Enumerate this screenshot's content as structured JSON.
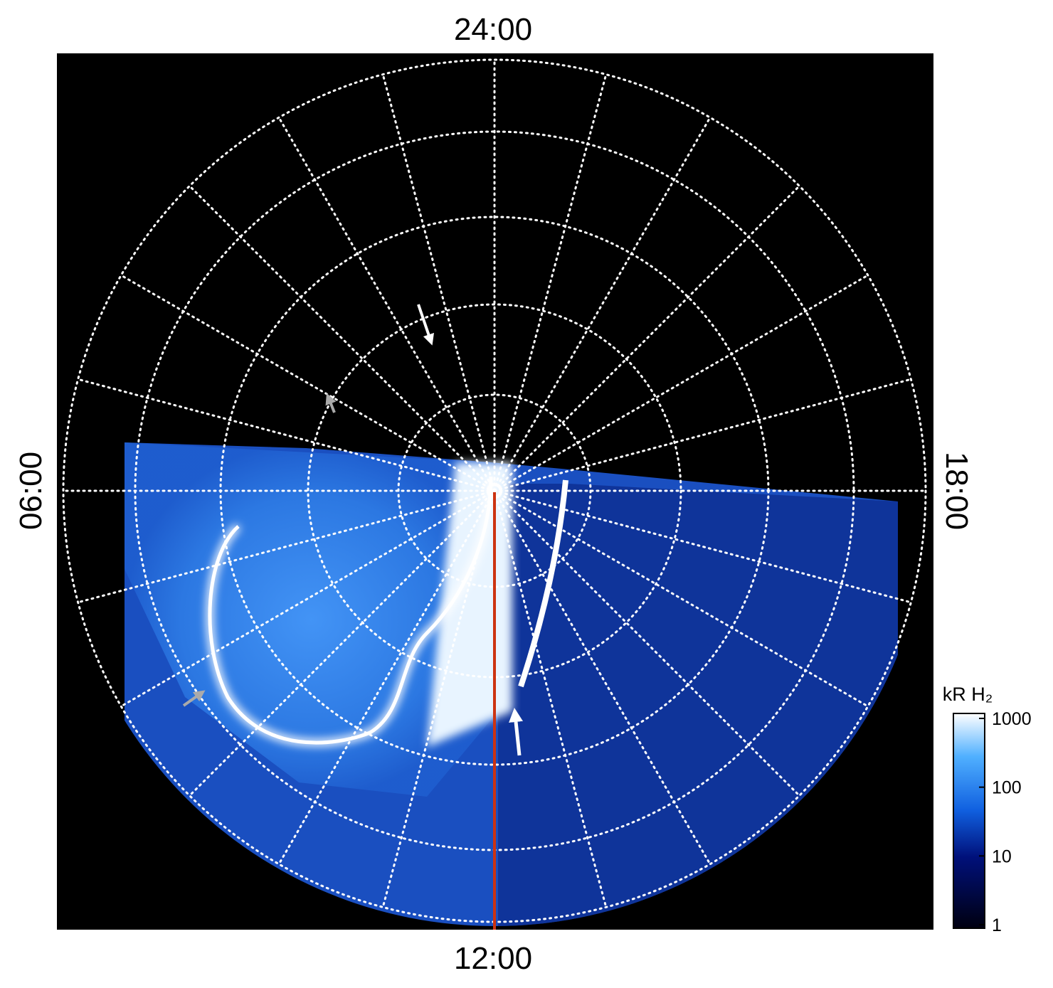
{
  "labels": {
    "top": "24:00",
    "bottom": "12:00",
    "left": "06:00",
    "right": "18:00"
  },
  "colorbar": {
    "title": "kR H₂",
    "scale": "log",
    "lim": [
      1,
      1000
    ],
    "ticks": [
      1,
      10,
      100,
      1000
    ]
  }
}
